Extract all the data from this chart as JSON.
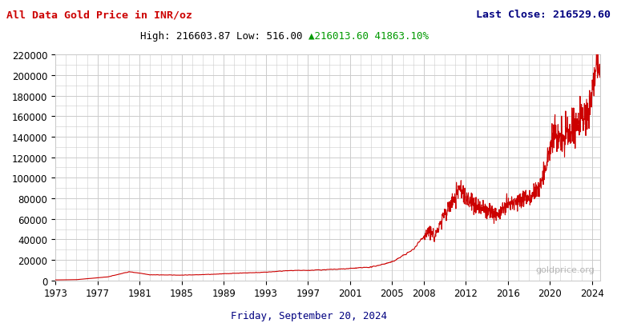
{
  "title_left": "All Data Gold Price in INR/oz",
  "title_right": "Last Close: 216529.60",
  "subtitle": "High: 216603.87 Low: 516.00 ▲216013.60 41863.10%",
  "xlabel": "Friday, September 20, 2024",
  "ylabel": "",
  "bg_color": "#ffffff",
  "plot_bg_color": "#ffffff",
  "line_color": "#cc0000",
  "grid_color": "#cccccc",
  "title_left_color": "#cc0000",
  "title_right_color": "#000080",
  "subtitle_black": "High: 216603.87 Low: 516.00 ",
  "subtitle_green": "▲216013.60 41863.10%",
  "xlabel_color": "#000080",
  "watermark": "goldprice.org",
  "ylim": [
    0,
    220000
  ],
  "yticks": [
    0,
    20000,
    40000,
    60000,
    80000,
    100000,
    120000,
    140000,
    160000,
    180000,
    200000,
    220000
  ],
  "xticks_years": [
    1973,
    1977,
    1981,
    1985,
    1989,
    1993,
    1997,
    2001,
    2005,
    2008,
    2012,
    2016,
    2020,
    2024
  ],
  "start_year": 1973,
  "end_year": 2024.75
}
